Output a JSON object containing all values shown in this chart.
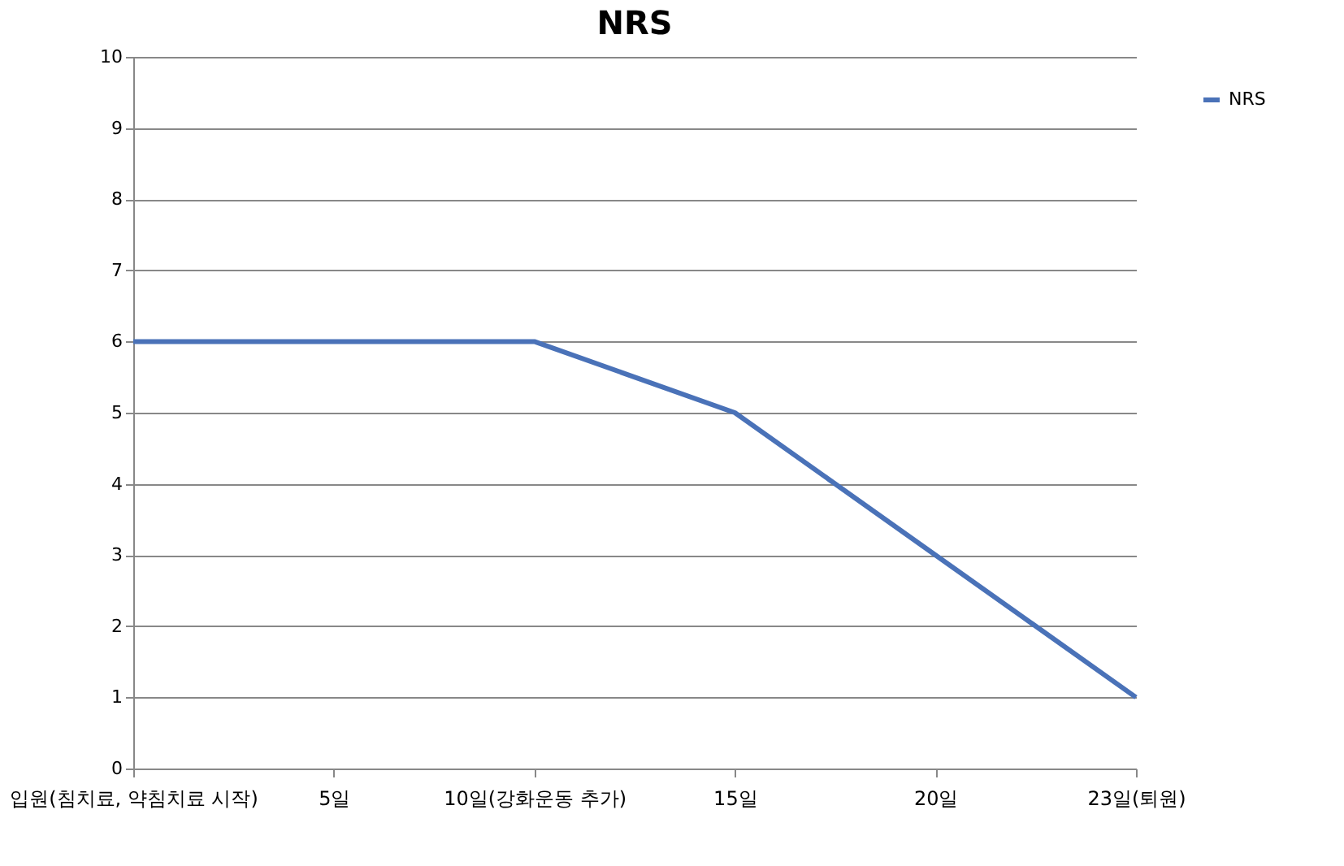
{
  "chart_data": {
    "type": "line",
    "title": "NRS",
    "categories": [
      "입원(침치료, 약침치료 시작)",
      "5일",
      "10일(강화운동 추가)",
      "15일",
      "20일",
      "23일(퇴원)"
    ],
    "series": [
      {
        "name": "NRS",
        "color": "#4a72b8",
        "values": [
          6,
          6,
          6,
          5,
          3,
          1
        ]
      }
    ],
    "ylim": [
      0,
      10
    ],
    "yticks": [
      0,
      1,
      2,
      3,
      4,
      5,
      6,
      7,
      8,
      9,
      10
    ],
    "grid": "y",
    "legend": "right",
    "marker": "none",
    "line_style": "solid"
  }
}
